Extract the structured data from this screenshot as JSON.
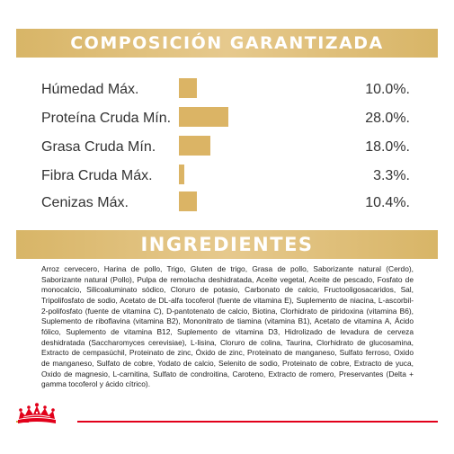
{
  "composition": {
    "title": "COMPOSICIÓN GARANTIZADA",
    "bar_color": "#dbb465",
    "rows": [
      {
        "label": "Húmedad Máx.",
        "value": "10.0%.",
        "percent": 10.0
      },
      {
        "label": "Proteína Cruda Mín.",
        "value": "28.0%.",
        "percent": 28.0
      },
      {
        "label": "Grasa Cruda Mín.",
        "value": "18.0%.",
        "percent": 18.0
      },
      {
        "label": "Fibra Cruda Máx.",
        "value": "3.3%.",
        "percent": 3.3
      },
      {
        "label": "Cenizas Máx.",
        "value": "10.4%.",
        "percent": 10.4
      }
    ]
  },
  "ingredients": {
    "title": "INGREDIENTES",
    "text": "Arroz cervecero, Harina de pollo, Trigo, Gluten de trigo, Grasa de pollo, Saborizante natural (Cerdo), Saborizante natural (Pollo), Pulpa de remolacha deshidratada, Aceite vegetal, Aceite de pescado, Fosfato de monocalcio, Silicoaluminato sódico, Cloruro de potasio, Carbonato de calcio, Fructooligosacaridos, Sal, Tripolifosfato de sodio, Acetato de DL-alfa tocoferol (fuente de vitamina E), Suplemento de niacina, L-ascorbil-2-polifosfato (fuente de vitamina C), D-pantotenato de calcio, Biotina, Clorhidrato de piridoxina (vitamina B6), Suplemento de riboflavina (vitamina B2), Mononitrato de tiamina (vitamina B1), Acetato de vitamina A, Ácido fólico, Suplemento de vitamina B12, Suplemento de vitamina D3, Hidrolizado de levadura de cerveza deshidratada (Saccharomyces cerevisiae), L-lisina, Cloruro de colina, Taurina, Clorhidrato de glucosamina, Extracto de cempasúchil, Proteinato de zinc, Óxido de zinc, Proteinato de manganeso, Sulfato ferroso, Oxido de manganeso, Sulfato de cobre, Yodato de calcio, Selenito de sodio, Proteinato de cobre, Extracto de yuca, Oxido de magnesio, L-carnitina, Sulfato de condroitina, Caroteno, Extracto de romero, Preservantes (Delta + gamma tocoferol y ácido cítrico)."
  },
  "branding": {
    "logo_icon": "royal-canin-crown-icon",
    "accent_red": "#e2001a",
    "gold": "#d8b567"
  }
}
